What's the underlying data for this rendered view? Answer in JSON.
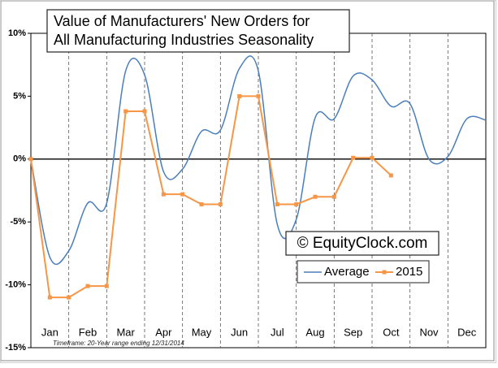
{
  "chart_data": {
    "type": "line",
    "title": [
      "Value of Manufacturers' New Orders for",
      "All Manufacturing Industries Seasonality"
    ],
    "watermark": "© EquityClock.com",
    "footnote": "Timeframe: 20-Year range ending 12/31/2014",
    "xlim": [
      0,
      12
    ],
    "xticks": [
      {
        "value": 0.5,
        "label": "Jan"
      },
      {
        "value": 1.5,
        "label": "Feb"
      },
      {
        "value": 2.5,
        "label": "Mar"
      },
      {
        "value": 3.5,
        "label": "Apr"
      },
      {
        "value": 4.5,
        "label": "May"
      },
      {
        "value": 5.5,
        "label": "Jun"
      },
      {
        "value": 6.5,
        "label": "Jul"
      },
      {
        "value": 7.5,
        "label": "Aug"
      },
      {
        "value": 8.5,
        "label": "Sep"
      },
      {
        "value": 9.5,
        "label": "Oct"
      },
      {
        "value": 10.5,
        "label": "Nov"
      },
      {
        "value": 11.5,
        "label": "Dec"
      }
    ],
    "ylim": [
      -15,
      10
    ],
    "yticks": [
      {
        "value": -15,
        "label": "-15%"
      },
      {
        "value": -10,
        "label": "-10%"
      },
      {
        "value": -5,
        "label": "-5%"
      },
      {
        "value": 0,
        "label": "0%"
      },
      {
        "value": 5,
        "label": "5%"
      },
      {
        "value": 10,
        "label": "10%"
      }
    ],
    "grid": true,
    "series": [
      {
        "name": "Average",
        "color": "#4a7ebb",
        "smooth": true,
        "markers": false,
        "x": [
          0,
          0.5,
          1,
          1.5,
          2,
          2.5,
          3,
          3.5,
          4,
          4.5,
          5,
          5.5,
          6,
          6.5,
          7,
          7.5,
          8,
          8.5,
          9,
          9.5,
          10,
          10.5,
          11,
          11.5,
          12
        ],
        "values": [
          0,
          -7.8,
          -7.3,
          -3.5,
          -3.5,
          7,
          6.7,
          -1,
          -0.8,
          2.2,
          2.3,
          7.2,
          7,
          -5.2,
          -4.8,
          3.3,
          3.2,
          6.6,
          6.3,
          4.2,
          4.4,
          0,
          0.2,
          3.2,
          3.1
        ]
      },
      {
        "name": "2015",
        "color": "#f79646",
        "smooth": false,
        "markers": true,
        "x": [
          0,
          0.5,
          1,
          1.5,
          2,
          2.5,
          3,
          3.5,
          4,
          4.5,
          5,
          5.5,
          6,
          6.5,
          7,
          7.5,
          8,
          8.5,
          9,
          9.5
        ],
        "values": [
          0,
          -11,
          -11,
          -10.1,
          -10.1,
          3.8,
          3.8,
          -2.8,
          -2.8,
          -3.6,
          -3.6,
          5,
          5,
          -3.6,
          -3.6,
          -3,
          -3,
          0.1,
          0.1,
          -1.3
        ]
      }
    ]
  }
}
